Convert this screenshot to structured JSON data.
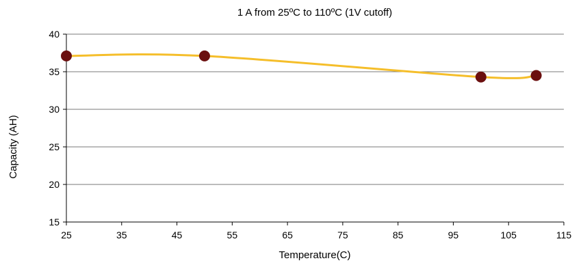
{
  "chart_data": {
    "type": "line",
    "title": "1 A from 25ºC to 110ºC (1V cutoff)",
    "xlabel": "Temperature(C)",
    "ylabel": "Capacity (AH)",
    "xlim": [
      25,
      115
    ],
    "ylim": [
      15,
      40
    ],
    "xticks": [
      "25",
      "35",
      "45",
      "55",
      "65",
      "75",
      "85",
      "95",
      "105",
      "115"
    ],
    "yticks": [
      "15",
      "20",
      "25",
      "30",
      "35",
      "40"
    ],
    "grid": "horizontal",
    "legend": "none",
    "series": [
      {
        "x": [
          25,
          50,
          100,
          110
        ],
        "y": [
          37.1,
          37.1,
          34.3,
          34.5
        ]
      }
    ],
    "colors": {
      "line": "#F5BE2A",
      "marker": "#6B0F0F",
      "grid": "#7a7a7a",
      "axis": "#000000"
    }
  }
}
